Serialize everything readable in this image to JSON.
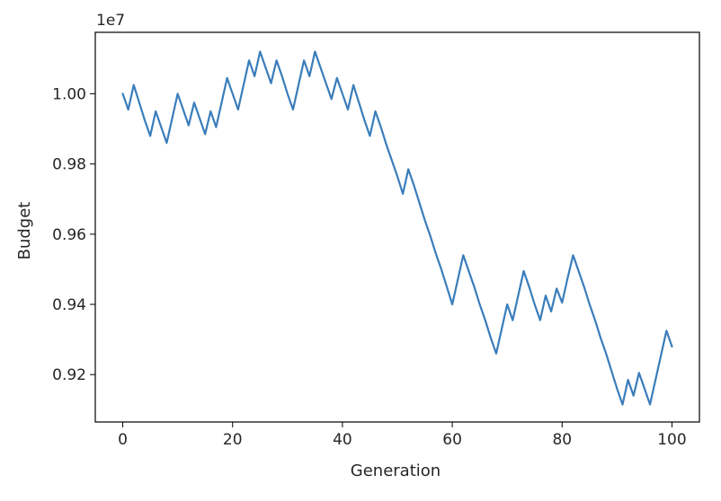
{
  "chart_data": {
    "type": "line",
    "xlabel": "Generation",
    "ylabel": "Budget",
    "y_offset_text": "1e7",
    "xlim": [
      -5,
      105
    ],
    "ylim": [
      0.9065,
      1.0175
    ],
    "y_scale_factor": 10000000,
    "xticks": [
      0,
      20,
      40,
      60,
      80,
      100
    ],
    "xtick_labels": [
      "0",
      "20",
      "40",
      "60",
      "80",
      "100"
    ],
    "yticks": [
      0.92,
      0.94,
      0.96,
      0.98,
      1.0
    ],
    "ytick_labels": [
      "0.92",
      "0.94",
      "0.96",
      "0.98",
      "1.00"
    ],
    "grid": false,
    "line_color": "#3a7dbb",
    "series": [
      {
        "x": [
          0,
          1,
          2,
          3,
          4,
          5,
          6,
          7,
          8,
          9,
          10,
          11,
          12,
          13,
          14,
          15,
          16,
          17,
          18,
          19,
          20,
          21,
          22,
          23,
          24,
          25,
          26,
          27,
          28,
          29,
          30,
          31,
          32,
          33,
          34,
          35,
          36,
          37,
          38,
          39,
          40,
          41,
          42,
          43,
          44,
          45,
          46,
          47,
          48,
          49,
          50,
          51,
          52,
          53,
          54,
          55,
          56,
          57,
          58,
          59,
          60,
          61,
          62,
          63,
          64,
          65,
          66,
          67,
          68,
          69,
          70,
          71,
          72,
          73,
          74,
          75,
          76,
          77,
          78,
          79,
          80,
          81,
          82,
          83,
          84,
          85,
          86,
          87,
          88,
          89,
          90,
          91,
          92,
          93,
          94,
          95,
          96,
          97,
          98,
          99,
          100
        ],
        "values": [
          1.0,
          0.9955,
          1.0025,
          0.9975,
          0.9925,
          0.988,
          0.995,
          0.9905,
          0.986,
          0.993,
          1.0,
          0.9955,
          0.991,
          0.9975,
          0.993,
          0.9885,
          0.995,
          0.9905,
          0.9975,
          1.0045,
          1.0,
          0.9955,
          1.0025,
          1.0095,
          1.005,
          1.012,
          1.0075,
          1.003,
          1.0095,
          1.005,
          1.0,
          0.9955,
          1.0025,
          1.0095,
          1.005,
          1.012,
          1.0075,
          1.003,
          0.9985,
          1.0045,
          1.0,
          0.9955,
          1.0025,
          0.9975,
          0.9925,
          0.988,
          0.995,
          0.9905,
          0.9855,
          0.981,
          0.9765,
          0.9715,
          0.9785,
          0.974,
          0.969,
          0.964,
          0.9595,
          0.9545,
          0.95,
          0.945,
          0.94,
          0.947,
          0.954,
          0.9495,
          0.945,
          0.94,
          0.9355,
          0.9305,
          0.926,
          0.933,
          0.94,
          0.9355,
          0.9425,
          0.9495,
          0.945,
          0.94,
          0.9355,
          0.9425,
          0.938,
          0.9445,
          0.9405,
          0.9475,
          0.954,
          0.9495,
          0.945,
          0.94,
          0.9355,
          0.9305,
          0.926,
          0.921,
          0.916,
          0.9115,
          0.9185,
          0.914,
          0.9205,
          0.916,
          0.9115,
          0.9185,
          0.9255,
          0.9325,
          0.928
        ]
      }
    ]
  }
}
